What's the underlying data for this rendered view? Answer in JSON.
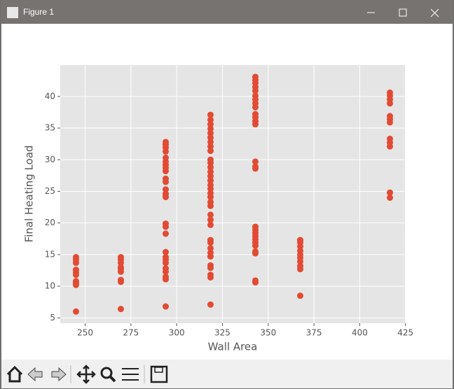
{
  "window_title": "Figure 1",
  "chart_data": {
    "type": "scatter",
    "xlabel": "Wall Area",
    "ylabel": "Final Heating Load",
    "color": "#e24a33",
    "grid": true,
    "xlim": [
      236.4,
      425.1
    ],
    "ylim": [
      4.15,
      44.96
    ],
    "xticks": [
      250,
      275,
      300,
      325,
      350,
      375,
      400,
      425
    ],
    "yticks": [
      5,
      10,
      15,
      20,
      25,
      30,
      35,
      40
    ],
    "x": [
      245,
      245,
      245,
      245,
      245,
      245,
      245,
      245,
      245,
      245,
      269.5,
      269.5,
      269.5,
      269.5,
      269.5,
      269.5,
      269.5,
      269.5,
      269.5,
      294,
      294,
      294,
      294,
      294,
      294,
      294,
      294,
      294,
      294,
      294,
      294,
      294,
      294,
      294,
      294,
      294,
      294,
      294,
      294,
      294,
      294,
      294,
      294,
      294,
      294,
      318.5,
      318.5,
      318.5,
      318.5,
      318.5,
      318.5,
      318.5,
      318.5,
      318.5,
      318.5,
      318.5,
      318.5,
      318.5,
      318.5,
      318.5,
      318.5,
      318.5,
      318.5,
      318.5,
      318.5,
      318.5,
      318.5,
      318.5,
      318.5,
      318.5,
      318.5,
      318.5,
      318.5,
      318.5,
      318.5,
      318.5,
      318.5,
      318.5,
      318.5,
      343,
      343,
      343,
      343,
      343,
      343,
      343,
      343,
      343,
      343,
      343,
      343,
      343,
      343,
      343,
      343,
      343,
      343,
      343,
      343,
      343,
      343,
      343,
      343,
      343,
      343,
      343,
      367.5,
      367.5,
      367.5,
      367.5,
      367.5,
      367.5,
      367.5,
      367.5,
      367.5,
      367.5,
      416.5,
      416.5,
      416.5,
      416.5,
      416.5,
      416.5,
      416.5,
      416.5,
      416.5,
      416.5,
      416.5,
      416.5
    ],
    "values": [
      6.0,
      10.2,
      10.5,
      10.8,
      11.8,
      12.2,
      12.6,
      13.7,
      14.2,
      14.6,
      6.4,
      10.7,
      11.0,
      12.3,
      12.7,
      13.0,
      13.7,
      14.2,
      14.6,
      6.8,
      11.1,
      11.5,
      12.3,
      12.8,
      13.7,
      14.2,
      14.6,
      15.4,
      18.3,
      19.4,
      19.9,
      24.1,
      24.6,
      25.3,
      26.5,
      27.0,
      28.2,
      28.7,
      29.2,
      29.7,
      30.3,
      31.3,
      31.9,
      32.4,
      32.8,
      7.1,
      11.4,
      11.8,
      12.9,
      13.3,
      14.7,
      15.3,
      16.0,
      16.9,
      17.3,
      19.7,
      20.5,
      21.3,
      22.7,
      23.3,
      24.1,
      24.7,
      25.4,
      26.0,
      26.7,
      27.4,
      28.1,
      28.8,
      29.5,
      30.0,
      31.4,
      32.1,
      32.8,
      33.5,
      34.2,
      34.9,
      35.6,
      36.3,
      37.1,
      10.6,
      10.9,
      15.2,
      15.5,
      16.4,
      16.9,
      17.4,
      17.9,
      18.4,
      18.9,
      19.4,
      28.6,
      28.9,
      29.7,
      35.6,
      36.1,
      36.7,
      37.2,
      38.3,
      38.9,
      39.5,
      40.1,
      40.9,
      41.5,
      42.1,
      42.6,
      43.1,
      8.5,
      12.7,
      13.2,
      13.9,
      14.5,
      15.0,
      15.6,
      16.3,
      16.9,
      17.3,
      24.0,
      24.8,
      32.1,
      32.7,
      33.3,
      35.9,
      36.4,
      36.9,
      38.9,
      39.5,
      40.1,
      40.6
    ]
  }
}
